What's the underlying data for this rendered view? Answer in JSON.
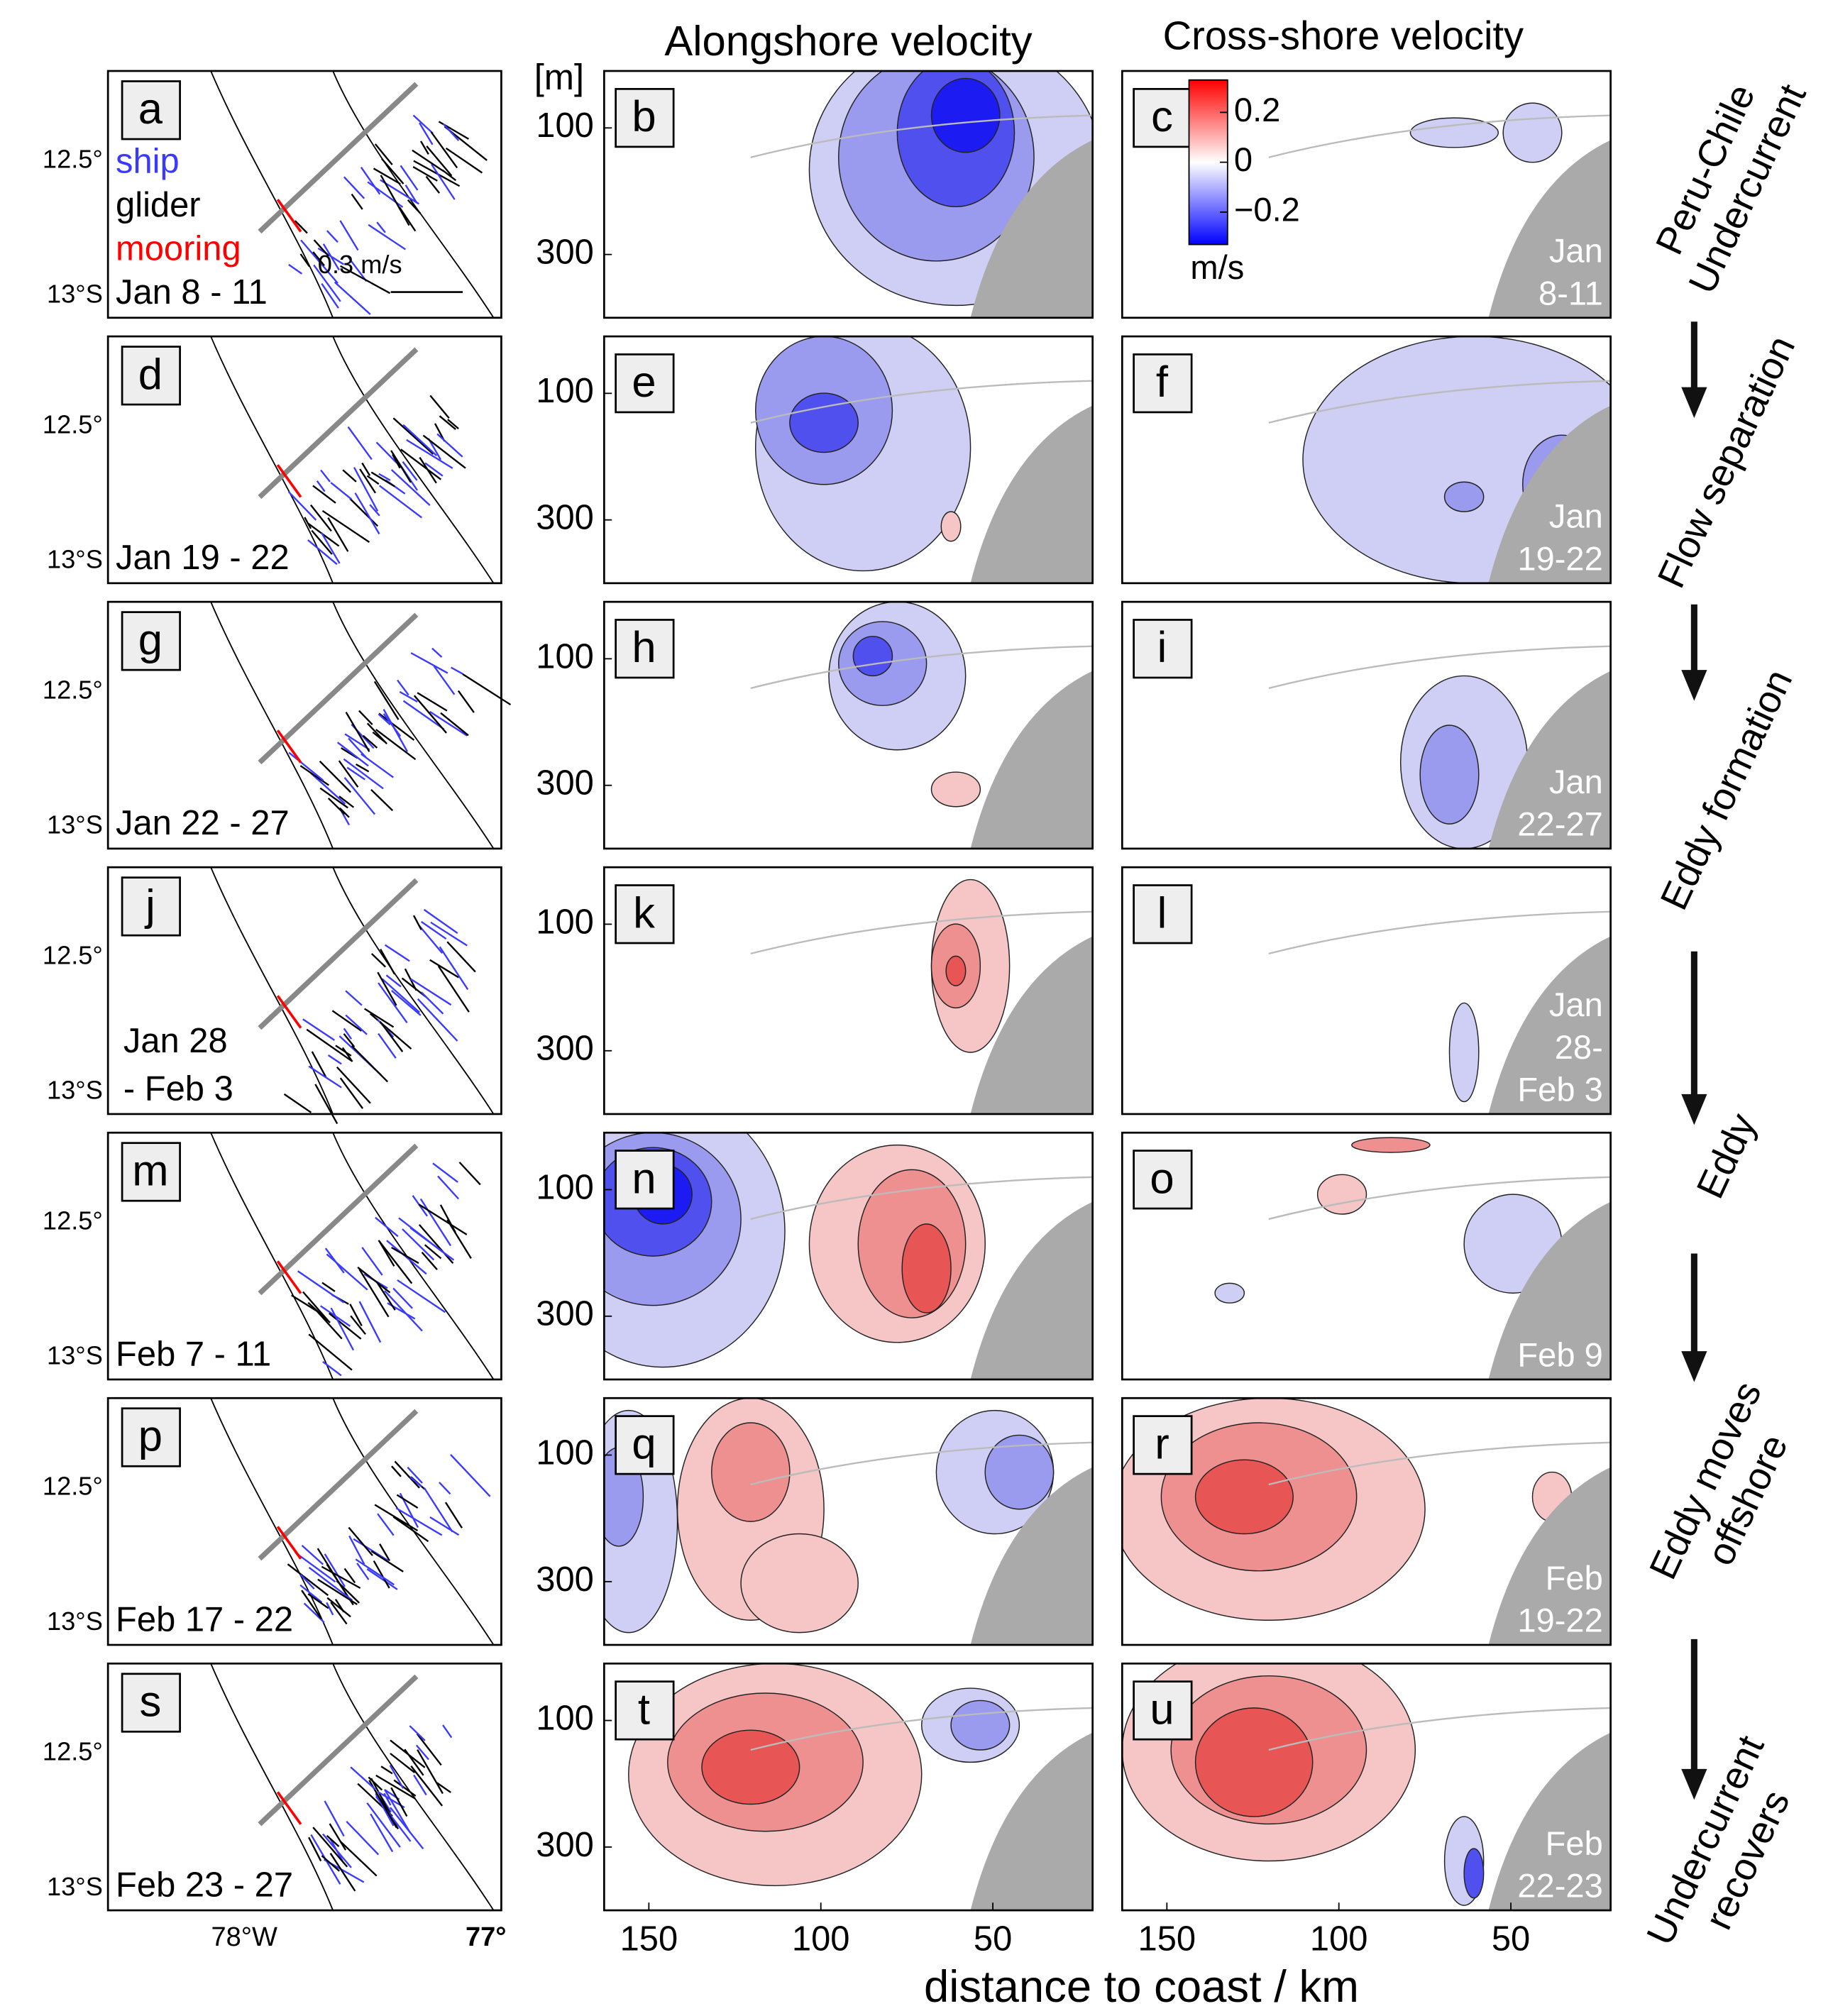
{
  "figure": {
    "column_titles": [
      "Alongshore velocity",
      "Cross-shore velocity"
    ],
    "depth_unit": "[m]",
    "x_axis_label": "distance to coast / km",
    "map": {
      "lat_ticks": [
        "12.5°",
        "13°S"
      ],
      "lon_ticks": [
        "78°W",
        "77°"
      ],
      "legend": [
        {
          "name": "ship",
          "color": "#3a3aff"
        },
        {
          "name": "glider",
          "color": "#000000"
        },
        {
          "name": "mooring",
          "color": "#ff0000"
        }
      ],
      "scale": "0.3 m/s"
    },
    "section": {
      "xlim": [
        163,
        21
      ],
      "xticks": [
        150,
        100,
        50
      ],
      "ylim": [
        10,
        400
      ],
      "yticks": [
        100,
        300
      ]
    },
    "colorbar": {
      "lim": [
        -0.33,
        0.33
      ],
      "ticks": [
        0.2,
        0,
        {
          "value": -0.2,
          "label": "−0.2"
        }
      ],
      "unit": "m/s"
    },
    "rows": [
      {
        "letters": [
          "a",
          "b",
          "c"
        ],
        "map_date": [
          "Jan 8 - 11"
        ],
        "section_date": [
          "Jan",
          "8-11"
        ]
      },
      {
        "letters": [
          "d",
          "e",
          "f"
        ],
        "map_date": [
          "Jan 19 - 22"
        ],
        "section_date": [
          "Jan",
          "19-22"
        ]
      },
      {
        "letters": [
          "g",
          "h",
          "i"
        ],
        "map_date": [
          "Jan 22 - 27"
        ],
        "section_date": [
          "Jan",
          "22-27"
        ]
      },
      {
        "letters": [
          "j",
          "k",
          "l"
        ],
        "map_date": [
          "Jan 28",
          " - Feb 3"
        ],
        "section_date": [
          "Jan",
          "28-",
          "Feb 3"
        ]
      },
      {
        "letters": [
          "m",
          "n",
          "o"
        ],
        "map_date": [
          "Feb  7 - 11"
        ],
        "section_date": [
          "Feb 9"
        ]
      },
      {
        "letters": [
          "p",
          "q",
          "r"
        ],
        "map_date": [
          "Feb  17 - 22"
        ],
        "section_date": [
          "Feb",
          "19-22"
        ]
      },
      {
        "letters": [
          "s",
          "t",
          "u"
        ],
        "map_date": [
          "Feb 23 - 27"
        ],
        "section_date": [
          "Feb",
          "22-23"
        ]
      }
    ],
    "stages": [
      [
        "Peru-Chile",
        "Undercurrent"
      ],
      [
        "Flow separation"
      ],
      [
        "Eddy formation"
      ],
      [
        "Eddy"
      ],
      [
        "Eddy moves",
        "offshore"
      ],
      [
        "Undercurrent",
        "recovers"
      ]
    ]
  }
}
